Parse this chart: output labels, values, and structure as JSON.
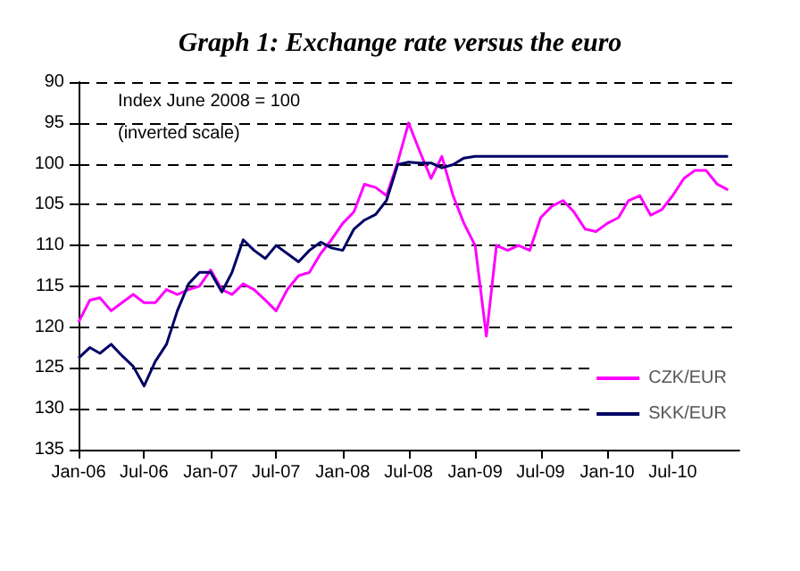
{
  "chart_data": {
    "type": "line",
    "title": "Graph 1: Exchange rate versus the euro",
    "annotations": [
      "Index June 2008 = 100",
      "(inverted scale)"
    ],
    "x": [
      "2006-01",
      "2006-02",
      "2006-03",
      "2006-04",
      "2006-05",
      "2006-06",
      "2006-07",
      "2006-08",
      "2006-09",
      "2006-10",
      "2006-11",
      "2006-12",
      "2007-01",
      "2007-02",
      "2007-03",
      "2007-04",
      "2007-05",
      "2007-06",
      "2007-07",
      "2007-08",
      "2007-09",
      "2007-10",
      "2007-11",
      "2007-12",
      "2008-01",
      "2008-02",
      "2008-03",
      "2008-04",
      "2008-05",
      "2008-06",
      "2008-07",
      "2008-08",
      "2008-09",
      "2008-10",
      "2008-11",
      "2008-12",
      "2009-01",
      "2009-02",
      "2009-03",
      "2009-04",
      "2009-05",
      "2009-06",
      "2009-07",
      "2009-08",
      "2009-09",
      "2009-10",
      "2009-11",
      "2009-12",
      "2010-01",
      "2010-02",
      "2010-03",
      "2010-04",
      "2010-05",
      "2010-06",
      "2010-07",
      "2010-08",
      "2010-09",
      "2010-10",
      "2010-11",
      "2010-12"
    ],
    "series": [
      {
        "name": "CZK/EUR",
        "color": "#ff00ff",
        "values": [
          119.4,
          116.7,
          116.4,
          118,
          117,
          116,
          117,
          117,
          115.4,
          116,
          115.4,
          115,
          113,
          115.4,
          116,
          114.7,
          115.4,
          116.7,
          118,
          115.4,
          113.7,
          113.3,
          111,
          109.3,
          107.3,
          105.9,
          102.5,
          102.9,
          103.9,
          99.8,
          95,
          98.5,
          101.8,
          99.1,
          103.9,
          107.3,
          110,
          121.1,
          110,
          110.6,
          110,
          110.6,
          106.6,
          105.2,
          104.5,
          105.9,
          108,
          108.3,
          107.3,
          106.6,
          104.5,
          103.9,
          106.3,
          105.6,
          103.9,
          101.8,
          100.8,
          100.8,
          102.5,
          103.2
        ]
      },
      {
        "name": "SKK/EUR",
        "color": "#000066",
        "values": [
          123.8,
          122.5,
          123.2,
          122.1,
          123.5,
          124.8,
          127.2,
          124.2,
          122.1,
          118,
          114.7,
          113.3,
          113.3,
          115.7,
          113.3,
          109.3,
          110.6,
          111.6,
          110,
          111,
          112,
          110.6,
          109.6,
          110.3,
          110.6,
          108,
          106.9,
          106.2,
          104.5,
          100.1,
          99.8,
          99.9,
          99.9,
          100.5,
          100.1,
          99.3,
          99.1,
          99.1,
          99.1,
          99.1,
          99.1,
          99.1,
          99.1,
          99.1,
          99.1,
          99.1,
          99.1,
          99.1,
          99.1,
          99.1,
          99.1,
          99.1,
          99.1,
          99.1,
          99.1,
          99.1,
          99.1,
          99.1,
          99.1,
          99.1
        ]
      }
    ],
    "xlim": [
      "2006-01",
      "2011-01"
    ],
    "xticks": [
      {
        "value": "2006-01",
        "label": "Jan-06"
      },
      {
        "value": "2006-07",
        "label": "Jul-06"
      },
      {
        "value": "2007-01",
        "label": "Jan-07"
      },
      {
        "value": "2007-07",
        "label": "Jul-07"
      },
      {
        "value": "2008-01",
        "label": "Jan-08"
      },
      {
        "value": "2008-07",
        "label": "Jul-08"
      },
      {
        "value": "2009-01",
        "label": "Jan-09"
      },
      {
        "value": "2009-07",
        "label": "Jul-09"
      },
      {
        "value": "2010-01",
        "label": "Jan-10"
      },
      {
        "value": "2010-07",
        "label": "Jul-10"
      }
    ],
    "ylim": [
      135,
      90
    ],
    "yticks": [
      90,
      95,
      100,
      105,
      110,
      115,
      120,
      125,
      130,
      135
    ],
    "grid": "y",
    "legend": "bottom right",
    "marker": "none",
    "line_style": "solid"
  }
}
